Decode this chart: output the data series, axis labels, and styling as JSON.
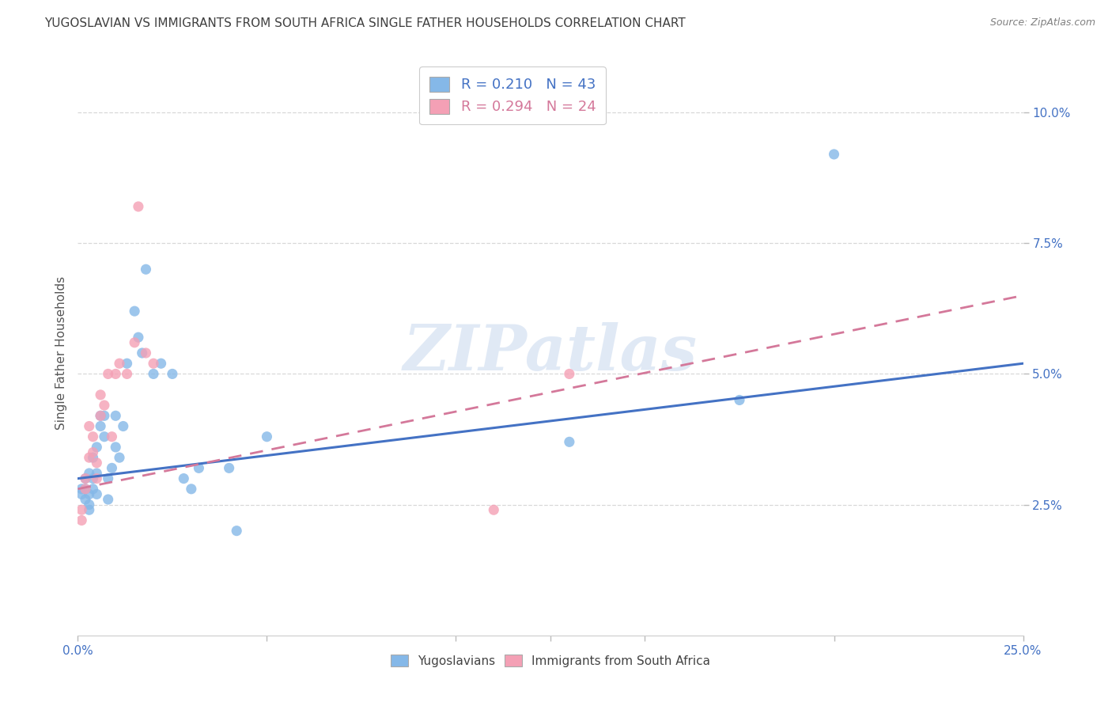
{
  "title": "YUGOSLAVIAN VS IMMIGRANTS FROM SOUTH AFRICA SINGLE FATHER HOUSEHOLDS CORRELATION CHART",
  "source": "Source: ZipAtlas.com",
  "ylabel": "Single Father Households",
  "ytick_labels": [
    "2.5%",
    "5.0%",
    "7.5%",
    "10.0%"
  ],
  "ytick_values": [
    0.025,
    0.05,
    0.075,
    0.1
  ],
  "xlim": [
    0.0,
    0.25
  ],
  "ylim": [
    0.0,
    0.108
  ],
  "legend_entries": [
    {
      "label_r": "R = 0.210",
      "label_n": "N = 43",
      "color": "#a8c8f0"
    },
    {
      "label_r": "R = 0.294",
      "label_n": "N = 24",
      "color": "#f4a8b8"
    }
  ],
  "watermark": "ZIPatlas",
  "blue_scatter_x": [
    0.001,
    0.001,
    0.002,
    0.002,
    0.002,
    0.003,
    0.003,
    0.003,
    0.003,
    0.004,
    0.004,
    0.004,
    0.005,
    0.005,
    0.005,
    0.006,
    0.006,
    0.007,
    0.007,
    0.008,
    0.008,
    0.009,
    0.01,
    0.01,
    0.011,
    0.012,
    0.013,
    0.015,
    0.016,
    0.017,
    0.018,
    0.02,
    0.022,
    0.025,
    0.028,
    0.03,
    0.032,
    0.04,
    0.042,
    0.05,
    0.13,
    0.175,
    0.2
  ],
  "blue_scatter_y": [
    0.028,
    0.027,
    0.026,
    0.028,
    0.03,
    0.024,
    0.025,
    0.027,
    0.031,
    0.028,
    0.03,
    0.034,
    0.027,
    0.031,
    0.036,
    0.04,
    0.042,
    0.038,
    0.042,
    0.03,
    0.026,
    0.032,
    0.042,
    0.036,
    0.034,
    0.04,
    0.052,
    0.062,
    0.057,
    0.054,
    0.07,
    0.05,
    0.052,
    0.05,
    0.03,
    0.028,
    0.032,
    0.032,
    0.02,
    0.038,
    0.037,
    0.045,
    0.092
  ],
  "pink_scatter_x": [
    0.001,
    0.001,
    0.002,
    0.002,
    0.003,
    0.003,
    0.004,
    0.004,
    0.005,
    0.005,
    0.006,
    0.006,
    0.007,
    0.008,
    0.009,
    0.01,
    0.011,
    0.013,
    0.015,
    0.016,
    0.018,
    0.02,
    0.11,
    0.13
  ],
  "pink_scatter_y": [
    0.022,
    0.024,
    0.028,
    0.03,
    0.034,
    0.04,
    0.035,
    0.038,
    0.03,
    0.033,
    0.042,
    0.046,
    0.044,
    0.05,
    0.038,
    0.05,
    0.052,
    0.05,
    0.056,
    0.082,
    0.054,
    0.052,
    0.024,
    0.05
  ],
  "blue_line_x": [
    0.0,
    0.25
  ],
  "blue_line_y": [
    0.03,
    0.052
  ],
  "pink_line_x": [
    0.0,
    0.25
  ],
  "pink_line_y": [
    0.028,
    0.065
  ],
  "blue_color": "#85b8e8",
  "pink_color": "#f4a0b5",
  "blue_line_color": "#4472c4",
  "pink_line_color": "#d4789a",
  "background_color": "#ffffff",
  "grid_color": "#d8d8d8",
  "watermark_color": "#c8d8ee",
  "title_color": "#404040",
  "source_color": "#808080",
  "axis_label_color": "#555555",
  "tick_color": "#4472c4"
}
